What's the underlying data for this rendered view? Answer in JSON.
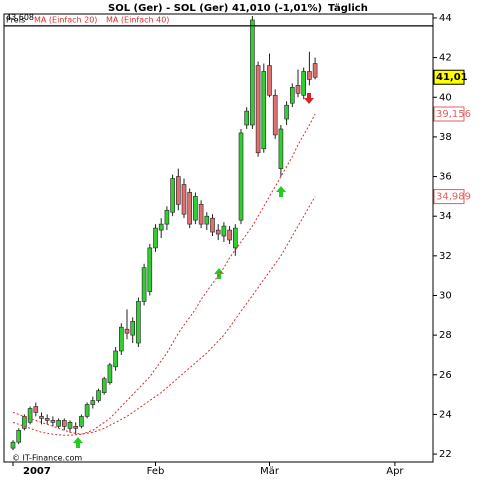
{
  "chart_data": {
    "type": "candlestick",
    "title": "SOL (Ger) - SOL (Ger)",
    "price_label": "41,010 (-1,01%)",
    "period": "Täglich",
    "categories": [
      "2007",
      null,
      null,
      null,
      null,
      null,
      null,
      null,
      null,
      null,
      null,
      null,
      null,
      null,
      null,
      null,
      null,
      null,
      null,
      null,
      null,
      null,
      null,
      null,
      null,
      "Feb",
      null,
      null,
      null,
      null,
      null,
      null,
      null,
      null,
      null,
      null,
      null,
      null,
      null,
      null,
      null,
      null,
      null,
      null,
      null,
      "Mär",
      null,
      null,
      null,
      null,
      null,
      null,
      null,
      null,
      null,
      null,
      null,
      null,
      null,
      null,
      null,
      null,
      null,
      null,
      null,
      null,
      null,
      "Apr",
      null,
      null,
      null,
      null,
      null,
      null
    ],
    "series": [
      {
        "name": "Preis",
        "type": "candlestick",
        "up_color": "#33cc33",
        "down_color": "#e07070",
        "open": [
          22.3,
          22.6,
          23.3,
          23.6,
          24.4,
          23.9,
          23.8,
          23.7,
          23.4,
          23.7,
          23.3,
          23.4,
          23.4,
          23.9,
          24.5,
          24.7,
          25.1,
          25.6,
          26.4,
          27.2,
          28.3,
          28.0,
          27.6,
          29.7,
          30.2,
          32.4,
          33.3,
          33.6,
          34.2,
          36.0,
          35.6,
          35.2,
          33.8,
          34.6,
          33.6,
          33.9,
          33.3,
          33.0,
          33.3,
          32.4,
          33.8,
          38.6,
          38.6,
          41.6,
          37.4,
          41.6,
          40.1,
          36.4,
          38.9,
          39.7,
          40.6,
          40.1,
          41.3,
          41.7,
          null,
          null,
          null,
          null,
          null,
          null,
          null,
          null,
          null,
          null,
          null,
          null,
          null,
          null,
          null,
          null,
          null,
          null,
          null,
          null
        ],
        "high": [
          22.7,
          23.3,
          24.0,
          24.4,
          24.6,
          24.1,
          24.0,
          23.9,
          23.8,
          23.8,
          23.7,
          23.6,
          24.0,
          24.6,
          24.9,
          25.3,
          25.9,
          26.6,
          27.4,
          28.6,
          29.3,
          28.9,
          29.9,
          31.6,
          32.6,
          33.6,
          33.9,
          34.5,
          36.1,
          36.4,
          35.9,
          35.4,
          35.2,
          34.8,
          34.2,
          34.1,
          33.6,
          33.7,
          33.5,
          33.6,
          38.4,
          39.5,
          44.1,
          41.8,
          41.7,
          42.2,
          40.4,
          38.6,
          39.8,
          40.7,
          41.4,
          41.5,
          42.3,
          42.0,
          null,
          null,
          null,
          null,
          null,
          null,
          null,
          null,
          null,
          null,
          null,
          null,
          null,
          null,
          null,
          null,
          null,
          null,
          null,
          null
        ],
        "low": [
          22.2,
          22.5,
          23.2,
          23.5,
          23.9,
          23.5,
          23.5,
          23.4,
          23.3,
          23.2,
          23.1,
          23.0,
          23.3,
          23.8,
          24.3,
          24.6,
          25.0,
          25.5,
          26.2,
          27.0,
          27.8,
          27.6,
          27.4,
          29.5,
          30.0,
          32.2,
          32.9,
          33.3,
          34.0,
          34.3,
          33.9,
          33.4,
          33.6,
          33.4,
          33.3,
          33.0,
          32.8,
          32.7,
          32.6,
          32.0,
          33.6,
          38.4,
          38.4,
          37.0,
          37.2,
          40.0,
          37.9,
          36.0,
          38.6,
          39.5,
          40.0,
          39.9,
          40.6,
          40.9,
          null,
          null,
          null,
          null,
          null,
          null,
          null,
          null,
          null,
          null,
          null,
          null,
          null,
          null,
          null,
          null,
          null,
          null,
          null,
          null
        ],
        "close": [
          22.6,
          23.2,
          23.9,
          24.3,
          24.1,
          23.8,
          23.7,
          23.6,
          23.7,
          23.4,
          23.6,
          23.3,
          23.9,
          24.5,
          24.7,
          25.2,
          25.8,
          26.5,
          27.2,
          28.4,
          28.1,
          28.7,
          29.7,
          31.4,
          32.4,
          33.4,
          33.6,
          34.3,
          35.9,
          34.6,
          34.1,
          33.6,
          35.0,
          33.6,
          34.0,
          33.2,
          33.1,
          33.5,
          32.8,
          33.4,
          38.2,
          39.3,
          43.9,
          37.2,
          41.3,
          40.1,
          38.1,
          38.4,
          39.6,
          40.5,
          40.2,
          41.3,
          40.9,
          41.01,
          null,
          null,
          null,
          null,
          null,
          null,
          null,
          null,
          null,
          null,
          null,
          null,
          null,
          null,
          null,
          null,
          null,
          null,
          null,
          null
        ]
      },
      {
        "name": "MA (Einfach 20)",
        "type": "line",
        "color": "#d83030",
        "values": [
          24.1,
          24.0,
          23.9,
          23.8,
          23.7,
          23.6,
          23.5,
          23.4,
          23.3,
          23.2,
          23.1,
          23.05,
          23.0,
          23.1,
          23.2,
          23.4,
          23.6,
          23.8,
          24.1,
          24.4,
          24.7,
          25.0,
          25.3,
          25.6,
          25.9,
          26.3,
          26.7,
          27.1,
          27.6,
          28.1,
          28.5,
          28.9,
          29.3,
          29.8,
          30.2,
          30.6,
          31.0,
          31.4,
          31.9,
          32.3,
          32.7,
          33.1,
          33.5,
          34.0,
          34.5,
          35.0,
          35.5,
          36.0,
          36.5,
          37.0,
          37.6,
          38.1,
          38.6,
          39.156,
          null,
          null,
          null,
          null,
          null,
          null,
          null,
          null,
          null,
          null,
          null,
          null,
          null,
          null,
          null,
          null,
          null,
          null,
          null,
          null
        ]
      },
      {
        "name": "MA (Einfach 40)",
        "type": "line",
        "color": "#d83030",
        "values": [
          23.6,
          23.5,
          23.4,
          23.3,
          23.2,
          23.1,
          23.05,
          23.0,
          22.97,
          22.95,
          22.95,
          22.97,
          23.0,
          23.05,
          23.1,
          23.2,
          23.3,
          23.45,
          23.6,
          23.75,
          23.9,
          24.1,
          24.3,
          24.5,
          24.7,
          24.9,
          25.1,
          25.35,
          25.6,
          25.85,
          26.1,
          26.35,
          26.6,
          26.85,
          27.1,
          27.4,
          27.7,
          28.0,
          28.4,
          28.8,
          29.2,
          29.6,
          30.0,
          30.4,
          30.8,
          31.2,
          31.6,
          32.0,
          32.5,
          33.0,
          33.5,
          34.0,
          34.5,
          34.989,
          null,
          null,
          null,
          null,
          null,
          null,
          null,
          null,
          null,
          null,
          null,
          null,
          null,
          null,
          null,
          null,
          null,
          null,
          null,
          null
        ]
      }
    ],
    "ylim": [
      21.6,
      44.2
    ],
    "yticks": [
      22,
      24,
      26,
      28,
      30,
      32,
      34,
      36,
      38,
      40,
      42,
      44
    ],
    "markers": [
      {
        "value": 43.608,
        "label": "43,608",
        "color": "#000000"
      },
      {
        "value": 41.01,
        "label": "41,01",
        "color": "#ffff00"
      },
      {
        "value": 39.156,
        "label": "39,156",
        "color": "#e06060"
      },
      {
        "value": 34.989,
        "label": "34,989",
        "color": "#e06060"
      }
    ],
    "copyright": "© IT-Finance.com"
  }
}
